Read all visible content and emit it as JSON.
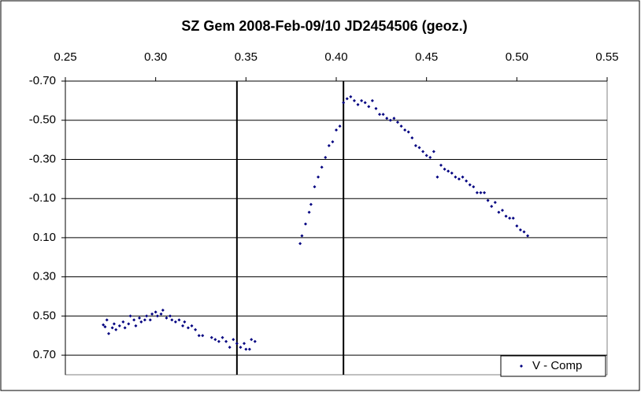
{
  "chart_data": {
    "type": "scatter",
    "title": "SZ Gem  2008-Feb-09/10    JD2454506  (geoz.)",
    "xlim": [
      0.25,
      0.55
    ],
    "xticks": [
      0.25,
      {
        "value": 0.3,
        "label": "0.30"
      },
      0.35,
      {
        "value": 0.4,
        "label": "0.40"
      },
      0.45,
      {
        "value": 0.5,
        "label": "0.50"
      },
      0.55
    ],
    "ylim": [
      -0.7,
      0.8
    ],
    "y_inverted": true,
    "yticks": [
      {
        "value": -0.7,
        "label": "-0.70"
      },
      {
        "value": -0.5,
        "label": "-0.50"
      },
      {
        "value": -0.3,
        "label": "-0.30"
      },
      {
        "value": -0.1,
        "label": "-0.10"
      },
      {
        "value": 0.1,
        "label": "0.10"
      },
      {
        "value": 0.3,
        "label": "0.30"
      },
      {
        "value": 0.5,
        "label": "0.50"
      },
      {
        "value": 0.7,
        "label": "0.70"
      }
    ],
    "grid": true,
    "vlines": [
      0.345,
      0.404
    ],
    "legend": "bottom-right",
    "series": [
      {
        "name": "V - Comp",
        "color": "#000080",
        "x": [
          0.271,
          0.272,
          0.273,
          0.274,
          0.276,
          0.277,
          0.278,
          0.28,
          0.282,
          0.283,
          0.285,
          0.286,
          0.288,
          0.289,
          0.291,
          0.292,
          0.294,
          0.295,
          0.297,
          0.298,
          0.3,
          0.301,
          0.303,
          0.304,
          0.306,
          0.308,
          0.309,
          0.311,
          0.313,
          0.315,
          0.316,
          0.318,
          0.32,
          0.322,
          0.324,
          0.326,
          0.331,
          0.333,
          0.335,
          0.337,
          0.339,
          0.341,
          0.343,
          0.345,
          0.347,
          0.349,
          0.35,
          0.352,
          0.353,
          0.355,
          0.38,
          0.381,
          0.383,
          0.385,
          0.386,
          0.388,
          0.39,
          0.392,
          0.394,
          0.396,
          0.398,
          0.4,
          0.402,
          0.404,
          0.406,
          0.408,
          0.41,
          0.412,
          0.414,
          0.416,
          0.418,
          0.42,
          0.422,
          0.424,
          0.426,
          0.428,
          0.43,
          0.432,
          0.434,
          0.436,
          0.438,
          0.44,
          0.442,
          0.444,
          0.446,
          0.448,
          0.45,
          0.452,
          0.454,
          0.456,
          0.458,
          0.46,
          0.462,
          0.464,
          0.466,
          0.468,
          0.47,
          0.472,
          0.474,
          0.476,
          0.478,
          0.48,
          0.482,
          0.484,
          0.486,
          0.488,
          0.49,
          0.492,
          0.494,
          0.496,
          0.498,
          0.5,
          0.502,
          0.504,
          0.506
        ],
        "values": [
          0.545,
          0.555,
          0.52,
          0.59,
          0.56,
          0.54,
          0.57,
          0.55,
          0.53,
          0.56,
          0.54,
          0.5,
          0.52,
          0.55,
          0.51,
          0.53,
          0.52,
          0.5,
          0.52,
          0.49,
          0.48,
          0.5,
          0.49,
          0.47,
          0.51,
          0.5,
          0.52,
          0.53,
          0.52,
          0.55,
          0.53,
          0.56,
          0.55,
          0.57,
          0.6,
          0.6,
          0.61,
          0.62,
          0.63,
          0.61,
          0.63,
          0.66,
          0.62,
          0.64,
          0.66,
          0.64,
          0.67,
          0.67,
          0.62,
          0.63,
          0.13,
          0.09,
          0.03,
          -0.03,
          -0.07,
          -0.16,
          -0.21,
          -0.26,
          -0.31,
          -0.37,
          -0.39,
          -0.45,
          -0.47,
          -0.59,
          -0.61,
          -0.62,
          -0.6,
          -0.58,
          -0.6,
          -0.59,
          -0.57,
          -0.6,
          -0.56,
          -0.53,
          -0.53,
          -0.51,
          -0.5,
          -0.51,
          -0.49,
          -0.47,
          -0.45,
          -0.44,
          -0.41,
          -0.37,
          -0.36,
          -0.34,
          -0.32,
          -0.31,
          -0.34,
          -0.21,
          -0.27,
          -0.25,
          -0.24,
          -0.23,
          -0.21,
          -0.2,
          -0.21,
          -0.19,
          -0.17,
          -0.16,
          -0.13,
          -0.13,
          -0.13,
          -0.09,
          -0.06,
          -0.08,
          -0.03,
          -0.04,
          -0.01,
          0.0,
          0.0,
          0.04,
          0.06,
          0.07,
          0.09
        ]
      }
    ]
  }
}
